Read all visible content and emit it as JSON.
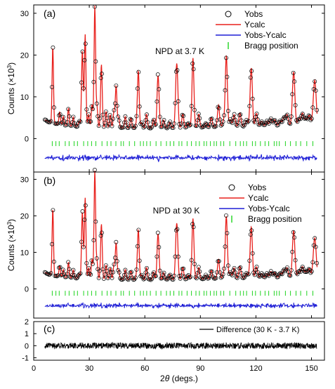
{
  "figure": {
    "xlabel_prefix": "2",
    "xlabel_theta": "θ",
    "xlabel_suffix": " (degs.)",
    "ylabel_base": "Counts (×10",
    "ylabel_exp": "3",
    "ylabel_close": ")",
    "xticks": [
      "0",
      "30",
      "60",
      "90",
      "120",
      "150"
    ]
  },
  "colors": {
    "obs": "#000000",
    "calc": "#e8201c",
    "diff": "#1f1fd6",
    "bragg": "#1fd41f",
    "frame": "#000000"
  },
  "chart_data": [
    {
      "type": "line",
      "panel_label": "(a)",
      "annotation": "NPD at 3.7 K",
      "xlim": [
        0,
        157
      ],
      "ylim": [
        -8,
        32
      ],
      "yticks": [
        "0",
        "10",
        "20",
        "30"
      ],
      "legend": [
        "Yobs",
        "Ycalc",
        "Yobs-Ycalc",
        "Bragg position"
      ],
      "legend_position": "top-right",
      "background": {
        "x": [
          6,
          10,
          20,
          40,
          60,
          80,
          100,
          120,
          140,
          153
        ],
        "y": [
          4.5,
          3.6,
          3.0,
          2.6,
          2.5,
          2.6,
          2.8,
          3.0,
          3.2,
          3.5
        ]
      },
      "peaks": [
        {
          "x": 10.3,
          "y": 18.5
        },
        {
          "x": 26.2,
          "y": 16.5
        },
        {
          "x": 27.8,
          "y": 22
        },
        {
          "x": 33.0,
          "y": 29
        },
        {
          "x": 36.5,
          "y": 12.5
        },
        {
          "x": 44.5,
          "y": 10
        },
        {
          "x": 56.5,
          "y": 13.5
        },
        {
          "x": 67.0,
          "y": 9.5
        },
        {
          "x": 77.5,
          "y": 10
        },
        {
          "x": 86.0,
          "y": 15
        },
        {
          "x": 104.0,
          "y": 17
        },
        {
          "x": 117.5,
          "y": 13.5
        },
        {
          "x": 140.5,
          "y": 8
        },
        {
          "x": 152.0,
          "y": 7.5
        }
      ],
      "bragg_offset": -1.2,
      "diff_offset": -4.6
    },
    {
      "type": "line",
      "panel_label": "(b)",
      "annotation": "NPD at 30 K",
      "xlim": [
        0,
        157
      ],
      "ylim": [
        -8,
        32
      ],
      "yticks": [
        "0",
        "10",
        "20",
        "30"
      ],
      "legend": [
        "Yobs",
        "Ycalc",
        "Yobs-Ycalc",
        "Bragg position"
      ],
      "legend_position": "top-right",
      "background": {
        "x": [
          6,
          10,
          20,
          40,
          60,
          80,
          100,
          120,
          140,
          153
        ],
        "y": [
          4.5,
          3.6,
          3.0,
          2.6,
          2.5,
          2.6,
          2.8,
          3.0,
          3.2,
          3.5
        ]
      },
      "peaks": [
        {
          "x": 10.3,
          "y": 18.5
        },
        {
          "x": 26.2,
          "y": 16.5
        },
        {
          "x": 27.8,
          "y": 22
        },
        {
          "x": 33.0,
          "y": 29.5
        },
        {
          "x": 36.5,
          "y": 12.5
        },
        {
          "x": 44.5,
          "y": 10
        },
        {
          "x": 56.5,
          "y": 13.5
        },
        {
          "x": 67.0,
          "y": 9.5
        },
        {
          "x": 77.5,
          "y": 10
        },
        {
          "x": 86.0,
          "y": 15
        },
        {
          "x": 104.0,
          "y": 17
        },
        {
          "x": 117.5,
          "y": 13.5
        },
        {
          "x": 140.5,
          "y": 8
        },
        {
          "x": 152.0,
          "y": 7.5
        }
      ],
      "bragg_offset": -1.2,
      "diff_offset": -4.6
    },
    {
      "type": "line",
      "panel_label": "(c)",
      "xlim": [
        0,
        157
      ],
      "ylim": [
        -1.2,
        2.0
      ],
      "yticks": [
        "-1",
        "0",
        "1",
        "2"
      ],
      "legend": [
        "Difference (30 K - 3.7 K)"
      ],
      "legend_position": "top-right",
      "x_range": [
        6,
        153
      ],
      "amplitude": 0.25
    }
  ]
}
